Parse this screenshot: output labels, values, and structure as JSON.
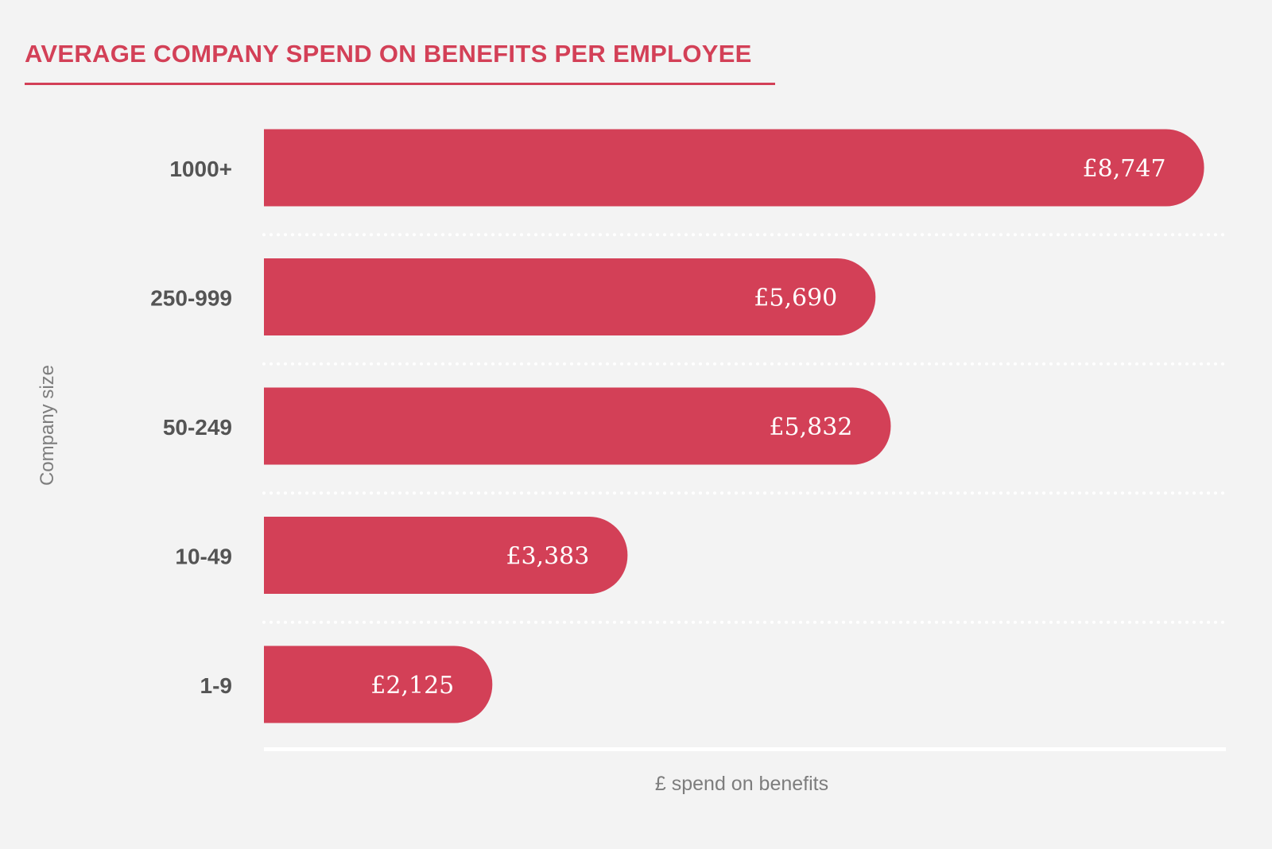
{
  "chart_data": {
    "type": "bar",
    "orientation": "horizontal",
    "title": "AVERAGE COMPANY SPEND ON BENEFITS PER EMPLOYEE",
    "xlabel": "£ spend on benefits",
    "ylabel": "Company size",
    "categories": [
      "1000+",
      "250-999",
      "50-249",
      "10-49",
      "1-9"
    ],
    "values": [
      8747,
      5690,
      5832,
      3383,
      2125
    ],
    "value_labels": [
      "£8,747",
      "£5,690",
      "£5,832",
      "£3,383",
      "£2,125"
    ],
    "xlim": [
      0,
      8950
    ],
    "grid": false,
    "legend": "none",
    "bar_color": "#d34057",
    "text_color": "#545454"
  }
}
